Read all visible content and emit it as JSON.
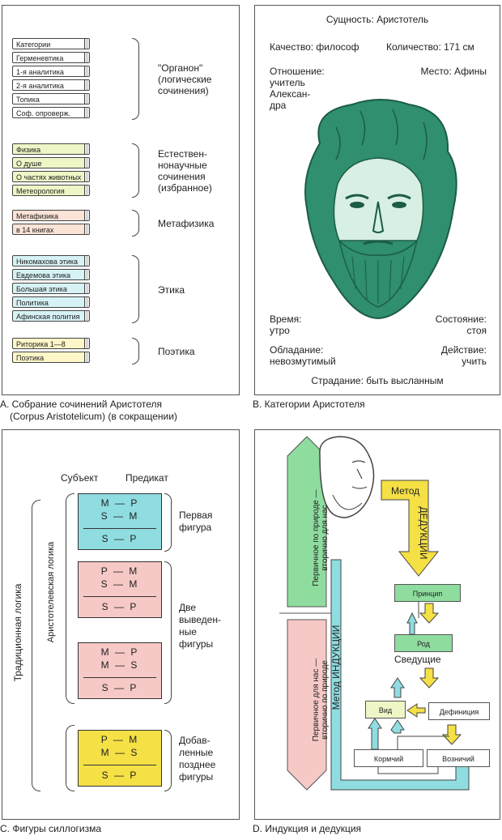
{
  "panelA": {
    "caption_line1": "A. Собрание сочинений Аристотеля",
    "caption_line2": "(Corpus Aristotelicum) (в сокращении)",
    "groups": [
      {
        "books": [
          "Категории",
          "Герменевтика",
          "1-я аналитика",
          "2-я аналитика",
          "Топика",
          "Соф. опроверж."
        ],
        "label": [
          "\"Органон\"",
          "(логические",
          "сочинения)"
        ],
        "color": "#ffffff"
      },
      {
        "books": [
          "Физика",
          "О душе",
          "О частях животных",
          "Метеорология"
        ],
        "label": [
          "Естествен-",
          "нонаучные",
          "сочинения",
          "(избранное)"
        ],
        "color": "#eef6c6"
      },
      {
        "books": [
          "Метафизика",
          "в 14 книгах"
        ],
        "label": [
          "Метафизика"
        ],
        "color": "#fbe3d6"
      },
      {
        "books": [
          "Никомахова этика",
          "Евдемова этика",
          "Большая этика",
          "Политика",
          "Афинская полития"
        ],
        "label": [
          "Этика"
        ],
        "color": "#d6f2f5"
      },
      {
        "books": [
          "Риторика 1—8",
          "Поэтика"
        ],
        "label": [
          "Поэтика"
        ],
        "color": "#fdf6c8"
      }
    ]
  },
  "panelB": {
    "caption": "B.   Категории Аристотеля",
    "essence": "Сущность: Аристотель",
    "quality": "Качество: философ",
    "quantity": "Количество: 171 см",
    "relation": [
      "Отношение:",
      "учитель",
      "Алексан-",
      "дра"
    ],
    "place": "Место: Афины",
    "time": [
      "Время:",
      "утро"
    ],
    "state": [
      "Состояние:",
      "стоя"
    ],
    "possession": [
      "Обладание:",
      "невозмутимый"
    ],
    "action": [
      "Действие:",
      "учить"
    ],
    "suffering": "Страдание: быть высланным",
    "head_color": "#2f8f6e"
  },
  "panelC": {
    "caption": "C. Фигуры силлогизма",
    "subject": "Субъект",
    "predicate": "Предикат",
    "traditional": "Традиционная логика",
    "aristotelian": "Аристотелевская логика",
    "figures": [
      {
        "rows": [
          "M — P",
          "S — M",
          "S — P"
        ],
        "color": "#8fdde0"
      },
      {
        "rows": [
          "P — M",
          "S — M",
          "S — P"
        ],
        "color": "#f6c9c6"
      },
      {
        "rows": [
          "M — P",
          "M — S",
          "S — P"
        ],
        "color": "#f6c9c6"
      },
      {
        "rows": [
          "P — M",
          "M — S",
          "S — P"
        ],
        "color": "#f5e046"
      }
    ],
    "label_first": [
      "Первая",
      "фигура"
    ],
    "label_derived": [
      "Две",
      "выведен-",
      "ные",
      "фигуры"
    ],
    "label_added": [
      "Добав-",
      "ленные",
      "позднее",
      "фигуры"
    ]
  },
  "panelD": {
    "caption": "D.  Индукция и дедукция",
    "primary_nature": [
      "Первичное по природе —",
      "вторично для нас"
    ],
    "primary_us": [
      "Первичное для нас —",
      "вторично по природе"
    ],
    "method_label": "Метод",
    "deduction": "ДЕДУКЦИИ",
    "induction": "Метод   ИНДУКЦИИ",
    "principle": "Принцип",
    "genus": "Род",
    "knowing": "Сведущие",
    "species": "Вид",
    "definition": "Дефиниция",
    "rower": "Кормчий",
    "driver": "Возничий",
    "green": "#8fdc9f",
    "pink": "#f6c9c6",
    "cyan": "#8fdde0",
    "yellow": "#f5e046"
  }
}
